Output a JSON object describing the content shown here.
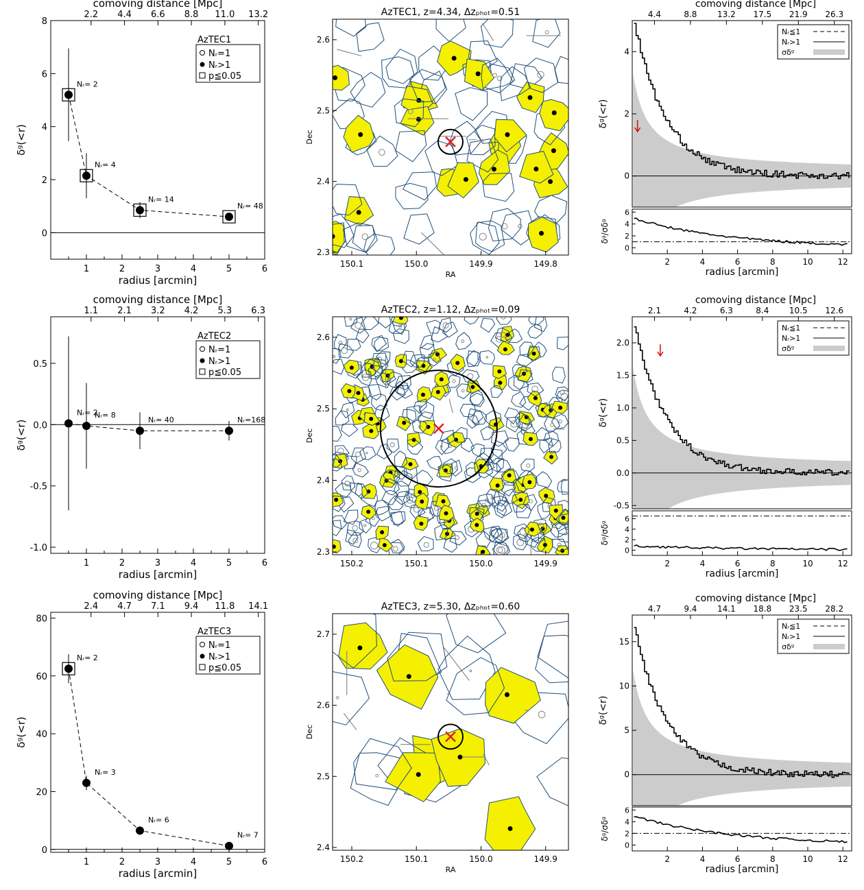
{
  "chart_data": [
    {
      "type": "scatter",
      "title": "",
      "legend_title": "AzTEC1",
      "legend": [
        "N_r=1",
        "N_r>1",
        "p≦0.05"
      ],
      "xlabel": "radius [arcmin]",
      "ylabel": "δ_g(<r)",
      "top_xlabel": "comoving distance [Mpc]",
      "xlim": [
        0,
        6
      ],
      "ylim": [
        -1,
        8
      ],
      "xticks": [
        "1",
        "2",
        "3",
        "4",
        "5",
        "6"
      ],
      "yticks": [
        "0",
        "2",
        "4",
        "6",
        "8"
      ],
      "top_ticks": [
        "2.2",
        "4.4",
        "6.6",
        "8.8",
        "11.0",
        "13.2"
      ],
      "points": [
        {
          "x": 0.5,
          "y": 5.2,
          "err": 1.75,
          "label": "N_r=  2",
          "filled": true,
          "square": true
        },
        {
          "x": 1.0,
          "y": 2.15,
          "err": 0.85,
          "label": "N_r=  4",
          "filled": true,
          "square": true
        },
        {
          "x": 2.5,
          "y": 0.85,
          "err": 0.3,
          "label": "N_r= 14",
          "filled": true,
          "square": true
        },
        {
          "x": 5.0,
          "y": 0.6,
          "err": 0.12,
          "label": "N_r= 48",
          "filled": true,
          "square": true
        }
      ]
    },
    {
      "type": "map",
      "title": "AzTEC1, z=4.34, Δz_phot=0.51",
      "xlabel": "RA",
      "ylabel": "Dec",
      "xticks": [
        "150.1",
        "150.0",
        "149.9",
        "149.8"
      ],
      "yticks": [
        "2.3",
        "2.4",
        "2.5",
        "2.6"
      ]
    },
    {
      "type": "line",
      "top_xlabel": "comoving distance [Mpc]",
      "top_ticks": [
        "4.4",
        "8.8",
        "13.2",
        "17.5",
        "21.9",
        "26.3"
      ],
      "ylabel": "δ_g(<r)",
      "ylabel_lower": "δ_g/σ_δg",
      "xlabel": "radius [arcmin]",
      "legend": [
        "N_r≦1",
        "N_r>1",
        "σ_δg"
      ],
      "xlim": [
        0,
        12.5
      ],
      "ylim": [
        -1.0,
        5.0
      ],
      "yticks": [
        "0",
        "2",
        "4"
      ],
      "xticks": [
        "2",
        "4",
        "6",
        "8",
        "10",
        "12"
      ],
      "lower_yticks": [
        "0",
        "2",
        "4",
        "6"
      ],
      "lower_ylim": [
        -1,
        6.5
      ],
      "threshold": 1.0,
      "arrow_x": 0.3,
      "peak": 5.2
    },
    {
      "type": "scatter",
      "title": "",
      "legend_title": "AzTEC2",
      "legend": [
        "N_r=1",
        "N_r>1",
        "p≦0.05"
      ],
      "xlabel": "radius [arcmin]",
      "ylabel": "δ_g(<r)",
      "top_xlabel": "comoving distance [Mpc]",
      "xlim": [
        0,
        6
      ],
      "ylim": [
        -1.05,
        0.88
      ],
      "xticks": [
        "1",
        "2",
        "3",
        "4",
        "5",
        "6"
      ],
      "yticks": [
        "-1.0",
        "-0.5",
        "0.0",
        "0.5"
      ],
      "top_ticks": [
        "1.1",
        "2.1",
        "3.2",
        "4.2",
        "5.3",
        "6.3"
      ],
      "points": [
        {
          "x": 0.5,
          "y": 0.01,
          "err": 0.71,
          "label": "N_r=  2",
          "filled": true,
          "square": false
        },
        {
          "x": 1.0,
          "y": -0.01,
          "err": 0.35,
          "label": "N_r=  8",
          "filled": true,
          "square": false
        },
        {
          "x": 2.5,
          "y": -0.05,
          "err": 0.15,
          "label": "N_r= 40",
          "filled": true,
          "square": false
        },
        {
          "x": 5.0,
          "y": -0.05,
          "err": 0.08,
          "label": "N_r=168",
          "filled": true,
          "square": false
        }
      ]
    },
    {
      "type": "map",
      "title": "AzTEC2, z=1.12, Δz_phot=0.09",
      "xlabel": "",
      "ylabel": "Dec",
      "xticks": [
        "150.2",
        "150.1",
        "150.0",
        "149.9"
      ],
      "yticks": [
        "2.3",
        "2.4",
        "2.5",
        "2.6"
      ]
    },
    {
      "type": "line",
      "top_xlabel": "comoving distance [Mpc]",
      "top_ticks": [
        "2.1",
        "4.2",
        "6.3",
        "8.4",
        "10.5",
        "12.6"
      ],
      "ylabel": "δ_g(<r)",
      "ylabel_lower": "δ_g/σ_δg",
      "xlabel": "radius [arcmin]",
      "legend": [
        "N_r≦1",
        "N_r>1",
        "σ_δg"
      ],
      "xlim": [
        0,
        12.5
      ],
      "ylim": [
        -0.55,
        2.4
      ],
      "yticks": [
        "-0.5",
        "0.0",
        "0.5",
        "1.0",
        "1.5",
        "2.0"
      ],
      "xticks": [
        "2",
        "4",
        "6",
        "8",
        "10",
        "12"
      ],
      "lower_yticks": [
        "0",
        "2",
        "4",
        "6"
      ],
      "lower_ylim": [
        -1,
        7.5
      ],
      "threshold": 6.5,
      "arrow_x": 1.6,
      "peak": 2.4
    },
    {
      "type": "scatter",
      "title": "",
      "legend_title": "AzTEC3",
      "legend": [
        "N_r=1",
        "N_r>1",
        "p≦0.05"
      ],
      "xlabel": "radius [arcmin]",
      "ylabel": "δ_g(<r)",
      "top_xlabel": "comoving distance [Mpc]",
      "xlim": [
        0,
        6
      ],
      "ylim": [
        -1,
        82
      ],
      "xticks": [
        "1",
        "2",
        "3",
        "4",
        "5",
        "6"
      ],
      "yticks": [
        "0",
        "20",
        "40",
        "60",
        "80"
      ],
      "top_ticks": [
        "2.4",
        "4.7",
        "7.1",
        "9.4",
        "11.8",
        "14.1"
      ],
      "points": [
        {
          "x": 0.5,
          "y": 62.5,
          "err": 5.0,
          "label": "N_r=  2",
          "filled": true,
          "square": true
        },
        {
          "x": 1.0,
          "y": 23.0,
          "err": 2.5,
          "label": "N_r=  3",
          "filled": true,
          "square": false
        },
        {
          "x": 2.5,
          "y": 6.5,
          "err": 0.8,
          "label": "N_r=  6",
          "filled": true,
          "square": false
        },
        {
          "x": 5.0,
          "y": 1.2,
          "err": 0.3,
          "label": "N_r=  7",
          "filled": true,
          "square": false
        }
      ]
    },
    {
      "type": "map",
      "title": "AzTEC3, z=5.30, Δz_phot=0.60",
      "xlabel": "RA",
      "ylabel": "Dec",
      "xticks": [
        "150.2",
        "150.1",
        "150.0",
        "149.9"
      ],
      "yticks": [
        "2.4",
        "2.5",
        "2.6",
        "2.7"
      ]
    },
    {
      "type": "line",
      "top_xlabel": "comoving distance [Mpc]",
      "top_ticks": [
        "4.7",
        "9.4",
        "14.1",
        "18.8",
        "23.5",
        "28.2"
      ],
      "ylabel": "δ_g(<r)",
      "ylabel_lower": "δ_g/σ_δg",
      "xlabel": "radius [arcmin]",
      "legend": [
        "N_r≦1",
        "N_r>1",
        "σ_δg"
      ],
      "xlim": [
        0,
        12.5
      ],
      "ylim": [
        -3.5,
        18
      ],
      "yticks": [
        "0",
        "5",
        "10",
        "15"
      ],
      "xticks": [
        "2",
        "4",
        "6",
        "8",
        "10",
        "12"
      ],
      "lower_yticks": [
        "0",
        "2",
        "4",
        "6"
      ],
      "lower_ylim": [
        -1,
        6.5
      ],
      "threshold": 2.0,
      "arrow_x": null,
      "peak": 17.5
    }
  ]
}
